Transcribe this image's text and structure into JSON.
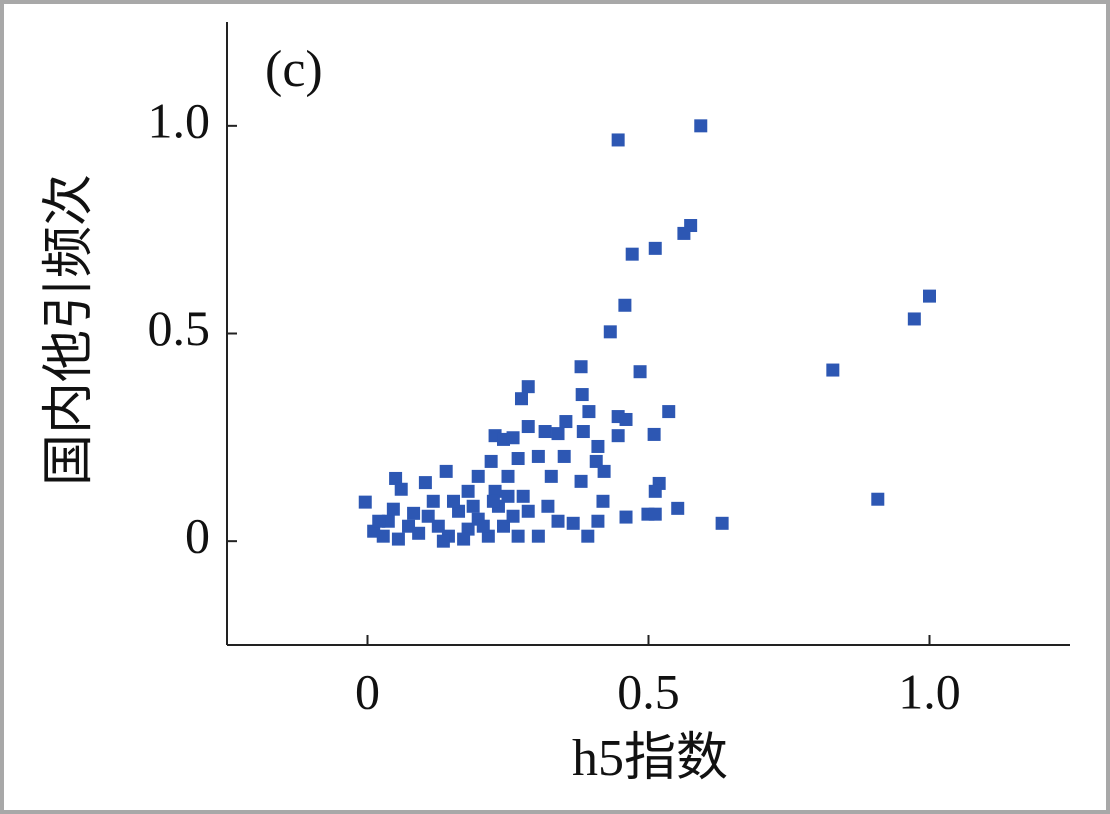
{
  "chart_data": {
    "type": "scatter",
    "panel_label": "(c)",
    "xlabel": "h5指数",
    "ylabel": "国内他引频次",
    "color": "#2d57b3",
    "xlim": [
      -0.25,
      1.25
    ],
    "ylim": [
      -0.25,
      1.25
    ],
    "xticks": [
      0,
      0.5,
      {
        "value": 1,
        "label": "1.0"
      }
    ],
    "yticks": [
      0,
      0.5,
      {
        "value": 1,
        "label": "1.0"
      }
    ],
    "x": [
      0.593,
      0.446,
      0.575,
      0.563,
      0.512,
      0.471,
      1.0,
      0.973,
      0.458,
      0.432,
      0.38,
      0.485,
      0.828,
      0.908,
      0.286,
      0.274,
      0.382,
      0.394,
      0.536,
      0.446,
      0.46,
      0.51,
      0.446,
      0.227,
      0.242,
      0.259,
      0.286,
      0.316,
      0.353,
      0.339,
      0.384,
      0.41,
      0.22,
      0.197,
      0.268,
      0.304,
      0.35,
      0.407,
      0.421,
      0.25,
      0.327,
      0.38,
      0.14,
      0.05,
      0.06,
      0.103,
      -0.004,
      0.519,
      0.512,
      0.419,
      0.552,
      0.46,
      0.499,
      0.512,
      0.631,
      0.227,
      0.179,
      0.011,
      0.028,
      0.037,
      0.055,
      0.073,
      0.091,
      0.108,
      0.126,
      0.144,
      0.162,
      0.179,
      0.197,
      0.215,
      0.233,
      0.242,
      0.259,
      0.268,
      0.286,
      0.304,
      0.321,
      0.339,
      0.366,
      0.392,
      0.41,
      0.046,
      0.082,
      0.117,
      0.153,
      0.188,
      0.224,
      0.25,
      0.277,
      0.02,
      0.135,
      0.171,
      0.206
    ],
    "y": [
      1.0,
      0.966,
      0.76,
      0.741,
      0.705,
      0.691,
      0.59,
      0.535,
      0.568,
      0.504,
      0.42,
      0.408,
      0.412,
      0.101,
      0.372,
      0.343,
      0.353,
      0.312,
      0.312,
      0.3,
      0.293,
      0.257,
      0.254,
      0.254,
      0.245,
      0.249,
      0.276,
      0.264,
      0.288,
      0.259,
      0.264,
      0.228,
      0.192,
      0.156,
      0.199,
      0.204,
      0.204,
      0.192,
      0.168,
      0.156,
      0.156,
      0.144,
      0.168,
      0.151,
      0.125,
      0.141,
      0.094,
      0.139,
      0.12,
      0.096,
      0.079,
      0.058,
      0.065,
      0.065,
      0.043,
      0.12,
      0.12,
      0.024,
      0.012,
      0.048,
      0.005,
      0.036,
      0.019,
      0.06,
      0.036,
      0.012,
      0.072,
      0.029,
      0.053,
      0.012,
      0.084,
      0.036,
      0.06,
      0.012,
      0.072,
      0.012,
      0.084,
      0.048,
      0.043,
      0.012,
      0.048,
      0.077,
      0.067,
      0.096,
      0.096,
      0.084,
      0.096,
      0.108,
      0.108,
      0.048,
      0.0,
      0.005,
      0.036
    ]
  }
}
